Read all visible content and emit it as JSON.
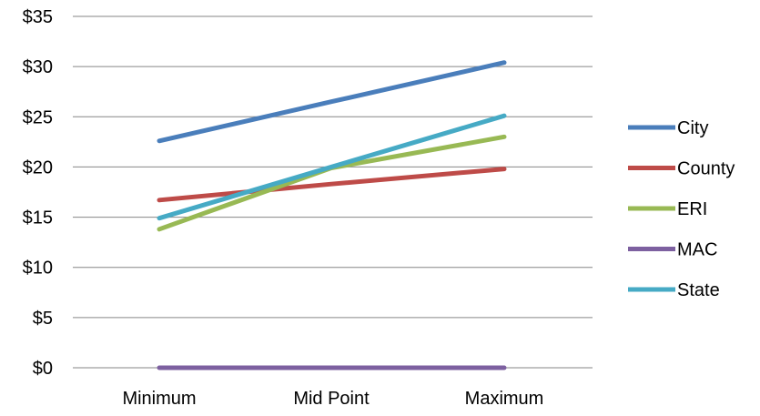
{
  "chart_data": {
    "type": "line",
    "title": "",
    "xlabel": "",
    "ylabel": "",
    "categories": [
      "Minimum",
      "Mid Point",
      "Maximum"
    ],
    "ylim": [
      0,
      35
    ],
    "y_ticks": [
      0,
      5,
      10,
      15,
      20,
      25,
      30,
      35
    ],
    "y_tick_labels": [
      "$0",
      "$5",
      "$10",
      "$15",
      "$20",
      "$25",
      "$30",
      "$35"
    ],
    "grid": "horizontal",
    "legend_position": "right",
    "series": [
      {
        "name": "City",
        "color": "#4A7EBB",
        "values": [
          22.6,
          26.5,
          30.4
        ]
      },
      {
        "name": "County",
        "color": "#BE4B48",
        "values": [
          16.7,
          18.3,
          19.8
        ]
      },
      {
        "name": "ERI",
        "color": "#98B954",
        "values": [
          13.8,
          19.9,
          23.0
        ]
      },
      {
        "name": "MAC",
        "color": "#7D60A0",
        "values": [
          0,
          0,
          0
        ]
      },
      {
        "name": "State",
        "color": "#46AAC5",
        "values": [
          14.9,
          20.0,
          25.1
        ]
      }
    ]
  }
}
